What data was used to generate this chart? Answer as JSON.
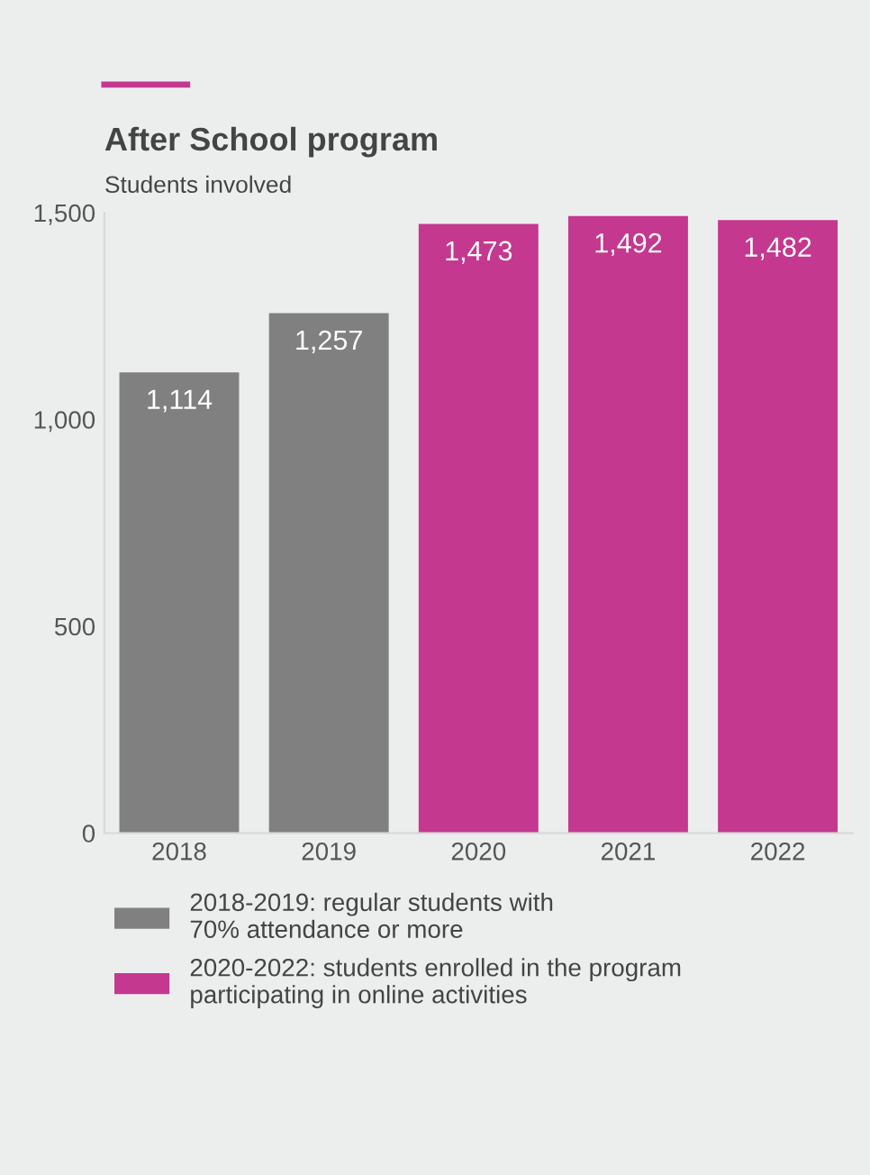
{
  "chart_data": {
    "type": "bar",
    "title": "After School program",
    "subtitle": "Students involved",
    "categories": [
      "2018",
      "2019",
      "2020",
      "2021",
      "2022"
    ],
    "series": [
      {
        "name": "2018-2019: regular students with\n70% attendance or more",
        "color": "#808080",
        "values": [
          1114,
          1257,
          null,
          null,
          null
        ],
        "value_labels": [
          "1,114",
          "1,257",
          null,
          null,
          null
        ]
      },
      {
        "name": "2020-2022: students enrolled in the program\nparticipating in online activities",
        "color": "#c4388f",
        "values": [
          null,
          null,
          1473,
          1492,
          1482
        ],
        "value_labels": [
          null,
          null,
          "1,473",
          "1,492",
          "1,482"
        ]
      }
    ],
    "ylim": [
      0,
      1500
    ],
    "yticks": [
      0,
      {
        "value": 500,
        "label": "500"
      },
      {
        "value": 1000,
        "label": "1,000"
      },
      {
        "value": 1500,
        "label": "1,500"
      }
    ],
    "grid": false,
    "legend": "bottom"
  }
}
